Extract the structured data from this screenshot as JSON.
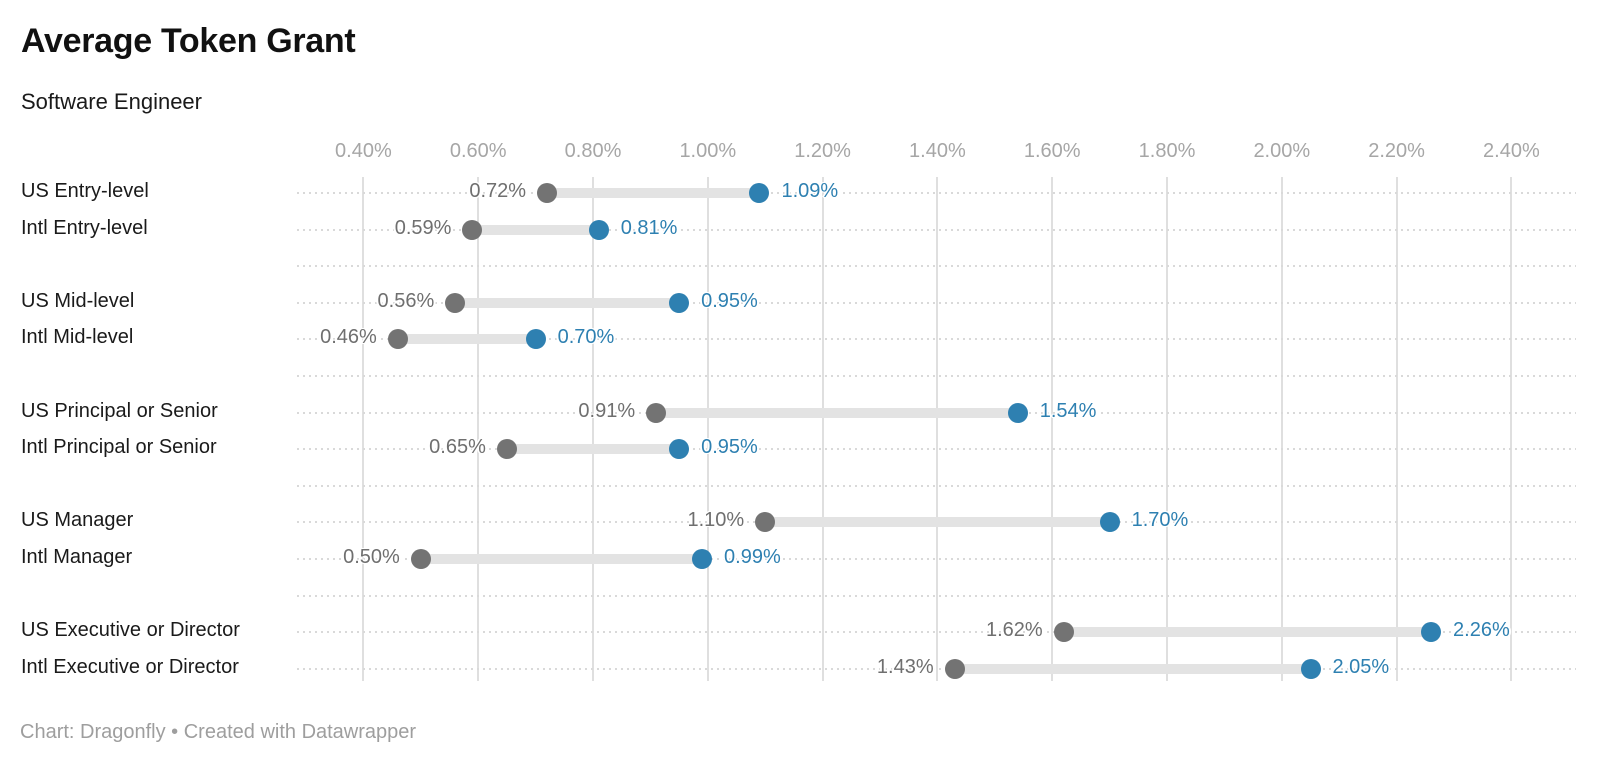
{
  "header": {
    "title": "Average Token Grant",
    "subtitle": "Software Engineer"
  },
  "footer": {
    "credit": "Chart: Dragonfly • Created with Datawrapper"
  },
  "colors": {
    "dot_start": "#737373",
    "dot_end": "#2e80b1",
    "bar": "#e3e3e3",
    "gridline": "#dfdfdf",
    "dotted_row_line": "#d9d9d9",
    "axis_label": "#a6a6a6",
    "value_label_start": "#6f6f6f",
    "value_label_end": "#2e80b1",
    "row_label": "#1a1a1a",
    "footer_text": "#9e9e9e",
    "background": "#ffffff"
  },
  "chart_data": {
    "type": "range",
    "title": "Average Token Grant",
    "subtitle": "Software Engineer",
    "note": "Chart: Dragonfly • Created with Datawrapper",
    "unit": "%",
    "x_axis": {
      "tick_values": [
        0.4,
        0.6,
        0.8,
        1.0,
        1.2,
        1.4,
        1.6,
        1.8,
        2.0,
        2.2,
        2.4
      ],
      "tick_labels": [
        "0.40%",
        "0.60%",
        "0.80%",
        "1.00%",
        "1.20%",
        "1.40%",
        "1.60%",
        "1.80%",
        "2.00%",
        "2.20%",
        "2.40%"
      ],
      "range_shown": [
        0.28,
        2.51
      ],
      "gridlines": true
    },
    "legend": "none",
    "group_size": 2,
    "rows": [
      {
        "label": "US Entry-level",
        "start": 0.72,
        "end": 1.09,
        "start_label": "0.72%",
        "end_label": "1.09%"
      },
      {
        "label": "Intl Entry-level",
        "start": 0.59,
        "end": 0.81,
        "start_label": "0.59%",
        "end_label": "0.81%"
      },
      {
        "label": "US Mid-level",
        "start": 0.56,
        "end": 0.95,
        "start_label": "0.56%",
        "end_label": "0.95%"
      },
      {
        "label": "Intl Mid-level",
        "start": 0.46,
        "end": 0.7,
        "start_label": "0.46%",
        "end_label": "0.70%"
      },
      {
        "label": "US Principal or Senior",
        "start": 0.91,
        "end": 1.54,
        "start_label": "0.91%",
        "end_label": "1.54%"
      },
      {
        "label": "Intl Principal or Senior",
        "start": 0.65,
        "end": 0.95,
        "start_label": "0.65%",
        "end_label": "0.95%"
      },
      {
        "label": "US Manager",
        "start": 1.1,
        "end": 1.7,
        "start_label": "1.10%",
        "end_label": "1.70%"
      },
      {
        "label": "Intl Manager",
        "start": 0.5,
        "end": 0.99,
        "start_label": "0.50%",
        "end_label": "0.99%"
      },
      {
        "label": "US Executive or Director",
        "start": 1.62,
        "end": 2.26,
        "start_label": "1.62%",
        "end_label": "2.26%"
      },
      {
        "label": "Intl Executive or Director",
        "start": 1.43,
        "end": 2.05,
        "start_label": "1.43%",
        "end_label": "2.05%"
      }
    ]
  }
}
